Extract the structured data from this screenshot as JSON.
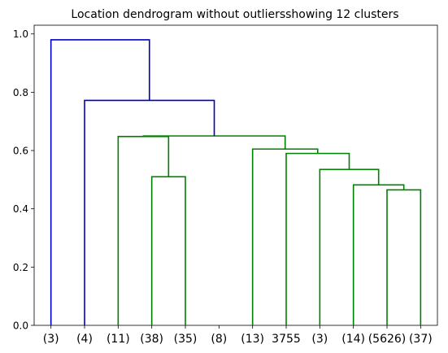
{
  "chart_data": {
    "type": "dendrogram",
    "title": "Location dendrogram without outliersshowing 12 clusters",
    "xlabel": "",
    "ylabel": "",
    "ylim": [
      0,
      1.03
    ],
    "yticks": [
      0.0,
      0.2,
      0.4,
      0.6,
      0.8,
      1.0
    ],
    "ytick_labels": [
      "0.0",
      "0.2",
      "0.4",
      "0.6",
      "0.8",
      "1.0"
    ],
    "leaves": [
      "(3)",
      "(4)",
      "(11)",
      "(38)",
      "(35)",
      "(8)",
      "(13)",
      "3755",
      "(3)",
      "(14)",
      "(5626)",
      "(37)"
    ],
    "colors": {
      "above_threshold": "#0000c0",
      "cluster": "#008000"
    },
    "merges": [
      {
        "left": 10,
        "right": 11,
        "height": 0.465,
        "color": "cluster"
      },
      {
        "left": 9,
        "right": 12,
        "height": 0.482,
        "color": "cluster"
      },
      {
        "left": 8,
        "right": 13,
        "height": 0.535,
        "color": "cluster"
      },
      {
        "left": 7,
        "right": 14,
        "height": 0.59,
        "color": "cluster"
      },
      {
        "left": 6,
        "right": 15,
        "height": 0.605,
        "color": "cluster"
      },
      {
        "left": 3,
        "right": 4,
        "height": 0.51,
        "color": "cluster"
      },
      {
        "left": 2,
        "right": 17,
        "height": 0.648,
        "color": "cluster"
      },
      {
        "left": 18,
        "right": 16,
        "height": 0.65,
        "color": "cluster"
      },
      {
        "left": 1,
        "right": 19,
        "height": 0.772,
        "color": "above_threshold"
      },
      {
        "left": 0,
        "right": 20,
        "height": 0.98,
        "color": "above_threshold"
      }
    ]
  }
}
